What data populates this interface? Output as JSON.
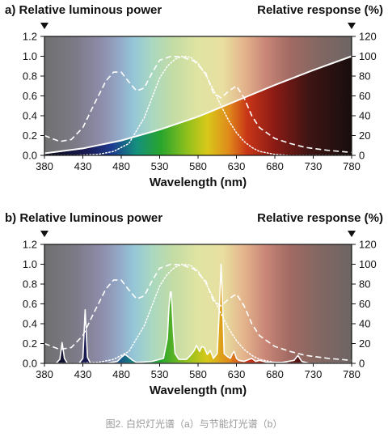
{
  "caption": "图2. 白炽灯光谱（a）与节能灯光谱（b）",
  "colors": {
    "dashed_response": "#ffffff",
    "spd_fill": "#ffffff"
  },
  "chart_data": [
    {
      "type": "line",
      "panel_label": "a)",
      "left_axis_title": "Relative luminous power",
      "right_axis_title": "Relative response (%)",
      "xlabel": "Wavelength (nm)",
      "xticks": [
        380,
        430,
        480,
        530,
        580,
        630,
        680,
        730,
        780
      ],
      "yticks_left": [
        "0.0",
        "0.2",
        "0.4",
        "0.6",
        "0.8",
        "1.0",
        "1.2"
      ],
      "yticks_right": [
        "0",
        "20",
        "40",
        "60",
        "80",
        "100",
        "120"
      ],
      "xlim": [
        380,
        780
      ],
      "ylim": [
        0,
        1.2
      ],
      "y2lim": [
        0,
        120
      ],
      "background": "visible spectrum gradient",
      "series": [
        {
          "style": "solid",
          "axis": "left",
          "x": [
            380,
            430,
            480,
            530,
            580,
            630,
            680,
            730,
            780
          ],
          "y": [
            0.02,
            0.07,
            0.15,
            0.26,
            0.39,
            0.55,
            0.71,
            0.86,
            1.0
          ]
        },
        {
          "style": "dashed",
          "axis": "right",
          "x": [
            380,
            390,
            400,
            415,
            430,
            445,
            460,
            470,
            480,
            490,
            500,
            510,
            520,
            530,
            545,
            560,
            575,
            590,
            600,
            610,
            620,
            630,
            640,
            650,
            660,
            680,
            700,
            720,
            750,
            780
          ],
          "y": [
            20,
            17,
            14,
            16,
            28,
            52,
            75,
            84,
            84,
            74,
            65,
            68,
            83,
            96,
            100,
            99,
            95,
            83,
            63,
            58,
            65,
            70,
            58,
            40,
            28,
            17,
            12,
            8,
            5,
            3
          ]
        },
        {
          "style": "dotted",
          "axis": "right",
          "x": [
            380,
            420,
            450,
            470,
            490,
            510,
            520,
            530,
            540,
            550,
            560,
            570,
            580,
            590,
            600,
            610,
            620,
            630,
            640,
            650,
            660,
            680,
            700,
            730,
            780
          ],
          "y": [
            0,
            0,
            1,
            4,
            12,
            38,
            58,
            78,
            90,
            97,
            100,
            99,
            93,
            81,
            66,
            50,
            35,
            23,
            14,
            8,
            4,
            1,
            0,
            0,
            0
          ]
        }
      ]
    },
    {
      "type": "line",
      "panel_label": "b)",
      "left_axis_title": "Relative luminous power",
      "right_axis_title": "Relative response (%)",
      "xlabel": "Wavelength (nm)",
      "xticks": [
        380,
        430,
        480,
        530,
        580,
        630,
        680,
        730,
        780
      ],
      "yticks_left": [
        "0.0",
        "0.2",
        "0.4",
        "0.6",
        "0.8",
        "1.0",
        "1.2"
      ],
      "yticks_right": [
        "0",
        "20",
        "40",
        "60",
        "80",
        "100",
        "120"
      ],
      "xlim": [
        380,
        780
      ],
      "ylim": [
        0,
        1.2
      ],
      "y2lim": [
        0,
        120
      ],
      "background": "visible spectrum gradient",
      "series": [
        {
          "style": "filled-spectrum",
          "axis": "left",
          "x": [
            380,
            395,
            400,
            403,
            406,
            410,
            425,
            430,
            433,
            436,
            440,
            460,
            475,
            480,
            485,
            490,
            495,
            500,
            520,
            535,
            540,
            542,
            544,
            545,
            546,
            548,
            550,
            555,
            565,
            570,
            575,
            578,
            582,
            585,
            588,
            592,
            596,
            600,
            605,
            608,
            610,
            612,
            614,
            618,
            622,
            625,
            627,
            630,
            633,
            640,
            650,
            655,
            660,
            670,
            690,
            705,
            710,
            715,
            725,
            780
          ],
          "y": [
            0,
            0,
            0.04,
            0.21,
            0.05,
            0,
            0,
            0.05,
            0.54,
            0.06,
            0,
            0,
            0.02,
            0.06,
            0.09,
            0.06,
            0.03,
            0.01,
            0.02,
            0.05,
            0.25,
            0.55,
            0.72,
            0.72,
            0.6,
            0.3,
            0.1,
            0.04,
            0.04,
            0.08,
            0.13,
            0.18,
            0.12,
            0.17,
            0.16,
            0.09,
            0.13,
            0.05,
            0.1,
            0.6,
            1.0,
            0.6,
            0.1,
            0.07,
            0.05,
            0.1,
            0.12,
            0.05,
            0.03,
            0.02,
            0.05,
            0.02,
            0.03,
            0.01,
            0.01,
            0.03,
            0.08,
            0.02,
            0,
            0
          ]
        },
        {
          "style": "dashed",
          "axis": "right",
          "x": [
            380,
            390,
            400,
            415,
            430,
            445,
            460,
            470,
            480,
            490,
            500,
            510,
            520,
            530,
            545,
            560,
            575,
            590,
            600,
            610,
            620,
            630,
            640,
            650,
            660,
            680,
            700,
            720,
            750,
            780
          ],
          "y": [
            20,
            17,
            14,
            16,
            28,
            52,
            75,
            84,
            84,
            74,
            65,
            68,
            83,
            96,
            100,
            99,
            95,
            83,
            63,
            58,
            65,
            70,
            58,
            40,
            28,
            17,
            12,
            8,
            5,
            3
          ]
        },
        {
          "style": "dotted",
          "axis": "right",
          "x": [
            380,
            420,
            450,
            470,
            490,
            510,
            520,
            530,
            540,
            550,
            560,
            570,
            580,
            590,
            600,
            610,
            620,
            630,
            640,
            650,
            660,
            680,
            700,
            730,
            780
          ],
          "y": [
            0,
            0,
            1,
            4,
            12,
            38,
            58,
            78,
            90,
            97,
            100,
            99,
            93,
            81,
            66,
            50,
            35,
            23,
            14,
            8,
            4,
            1,
            0,
            0,
            0
          ]
        }
      ]
    }
  ]
}
